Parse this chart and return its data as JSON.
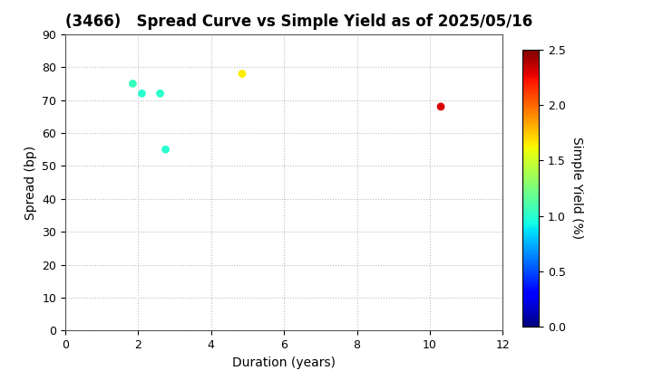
{
  "title": "(3466)   Spread Curve vs Simple Yield as of 2025/05/16",
  "xlabel": "Duration (years)",
  "ylabel": "Spread (bp)",
  "colorbar_label": "Simple Yield (%)",
  "xlim": [
    0,
    12
  ],
  "ylim": [
    0,
    90
  ],
  "xticks": [
    0,
    2,
    4,
    6,
    8,
    10,
    12
  ],
  "yticks": [
    0,
    10,
    20,
    30,
    40,
    50,
    60,
    70,
    80,
    90
  ],
  "points": [
    {
      "duration": 1.85,
      "spread": 75,
      "simple_yield": 1.05
    },
    {
      "duration": 2.1,
      "spread": 72,
      "simple_yield": 1.0
    },
    {
      "duration": 2.6,
      "spread": 72,
      "simple_yield": 1.0
    },
    {
      "duration": 2.75,
      "spread": 55,
      "simple_yield": 1.0
    },
    {
      "duration": 4.85,
      "spread": 78,
      "simple_yield": 1.65
    },
    {
      "duration": 10.3,
      "spread": 68,
      "simple_yield": 2.3
    }
  ],
  "cmap": "jet",
  "vmin": 0.0,
  "vmax": 2.5,
  "marker_size": 40,
  "title_fontsize": 12,
  "axis_label_fontsize": 10,
  "tick_fontsize": 9,
  "background_color": "#ffffff",
  "grid_color": "#bbbbbb",
  "grid_style": "dotted"
}
